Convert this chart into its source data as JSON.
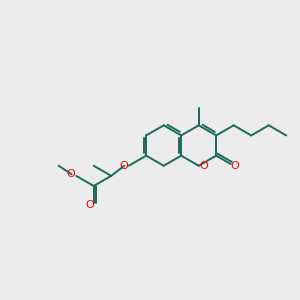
{
  "background_color": "#ececec",
  "bond_color": "#1a6b5a",
  "oxygen_color": "#ff0000",
  "line_width": 1.4,
  "figsize": [
    3.0,
    3.0
  ],
  "dpi": 100,
  "xlim": [
    0,
    10
  ],
  "ylim": [
    0,
    10
  ]
}
